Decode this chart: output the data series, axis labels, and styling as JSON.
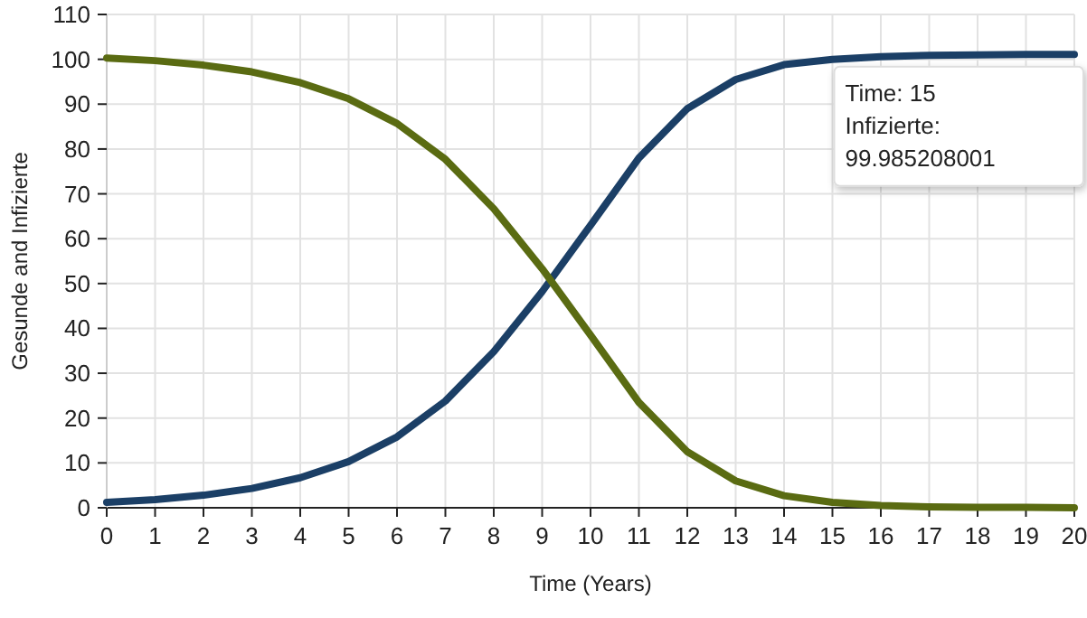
{
  "chart_data": {
    "type": "line",
    "xlabel": "Time (Years)",
    "ylabel": "Gesunde and Infizierte",
    "x": [
      0,
      1,
      2,
      3,
      4,
      5,
      6,
      7,
      8,
      9,
      10,
      11,
      12,
      13,
      14,
      15,
      16,
      17,
      18,
      19,
      20
    ],
    "series": [
      {
        "color": "#1b3f66",
        "values": [
          1.2,
          1.8,
          2.8,
          4.3,
          6.7,
          10.3,
          15.8,
          23.8,
          34.8,
          48.2,
          63,
          78,
          89,
          95.5,
          98.8,
          99.985208001,
          100.6,
          100.9,
          101,
          101.1,
          101.1
        ]
      },
      {
        "color": "#5a6b12",
        "values": [
          100.3,
          99.7,
          98.7,
          97.2,
          94.8,
          91.2,
          85.7,
          77.7,
          66.7,
          53.3,
          38.5,
          23.5,
          12.5,
          6,
          2.7,
          1.2,
          0.5,
          0.2,
          0.1,
          0.1,
          0
        ]
      }
    ],
    "xlim": [
      0,
      20
    ],
    "xticks": [
      0,
      1,
      2,
      3,
      4,
      5,
      6,
      7,
      8,
      9,
      10,
      11,
      12,
      13,
      14,
      15,
      16,
      17,
      18,
      19,
      20
    ],
    "ylim": [
      0,
      110
    ],
    "yticks": [
      0,
      10,
      20,
      30,
      40,
      50,
      60,
      70,
      80,
      90,
      100,
      110
    ],
    "grid": true,
    "marker": "none",
    "line_style": "solid",
    "annotations": [
      {
        "text": "Time: 15\nInfizierte:\n99.985208001",
        "x": 15,
        "y": 99.985208001
      }
    ]
  }
}
